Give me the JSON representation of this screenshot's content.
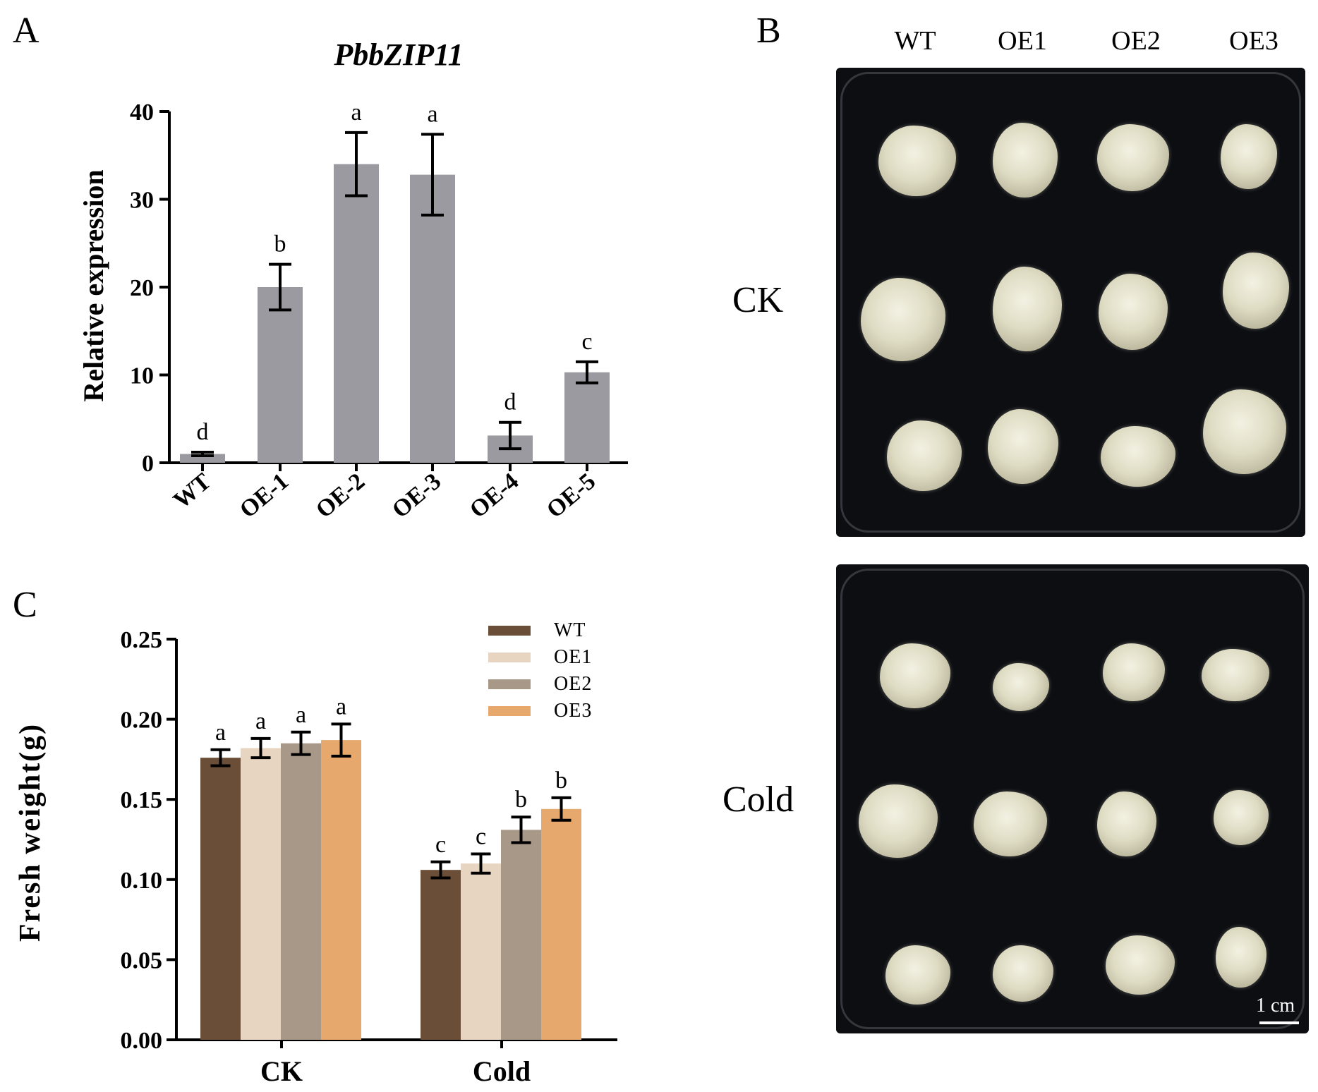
{
  "panels": {
    "A": "A",
    "B": "B",
    "C": "C"
  },
  "chart_data": [
    {
      "type": "bar",
      "panel": "A",
      "title": "PbbZIP11",
      "xlabel": "",
      "ylabel": "Relative expression",
      "categories": [
        "WT",
        "OE-1",
        "OE-2",
        "OE-3",
        "OE-4",
        "OE-5"
      ],
      "values": [
        1.0,
        20.0,
        34.0,
        32.8,
        3.1,
        10.3
      ],
      "errors": [
        0.2,
        2.6,
        3.6,
        4.6,
        1.5,
        1.2
      ],
      "letters": [
        "d",
        "b",
        "a",
        "a",
        "d",
        "c"
      ],
      "ylim": [
        0,
        40
      ],
      "yticks": [
        "0",
        "10",
        "20",
        "30",
        "40"
      ],
      "bar_color": "#9a9aa0"
    },
    {
      "type": "bar",
      "panel": "C",
      "xlabel": "",
      "ylabel": "Fresh weight(g)",
      "categories": [
        "CK",
        "Cold"
      ],
      "series": [
        {
          "name": "WT",
          "values": [
            0.176,
            0.106
          ],
          "errors": [
            0.005,
            0.005
          ],
          "letters": [
            "a",
            "c"
          ],
          "color": "#6b4e38"
        },
        {
          "name": "OE1",
          "values": [
            0.182,
            0.11
          ],
          "errors": [
            0.006,
            0.006
          ],
          "letters": [
            "a",
            "c"
          ],
          "color": "#e8d5c1"
        },
        {
          "name": "OE2",
          "values": [
            0.185,
            0.131
          ],
          "errors": [
            0.007,
            0.008
          ],
          "letters": [
            "a",
            "b"
          ],
          "color": "#a89888"
        },
        {
          "name": "OE3",
          "values": [
            0.187,
            0.144
          ],
          "errors": [
            0.01,
            0.007
          ],
          "letters": [
            "a",
            "b"
          ],
          "color": "#e6a86c"
        }
      ],
      "ylim": [
        0,
        0.25
      ],
      "yticks": [
        "0.00",
        "0.05",
        "0.10",
        "0.15",
        "0.20",
        "0.25"
      ],
      "legend": "top-right"
    }
  ],
  "photos": {
    "column_labels": [
      "WT",
      "OE1",
      "OE2",
      "OE3"
    ],
    "row_labels": [
      "CK",
      "Cold"
    ],
    "scale_bar": "1 cm"
  }
}
